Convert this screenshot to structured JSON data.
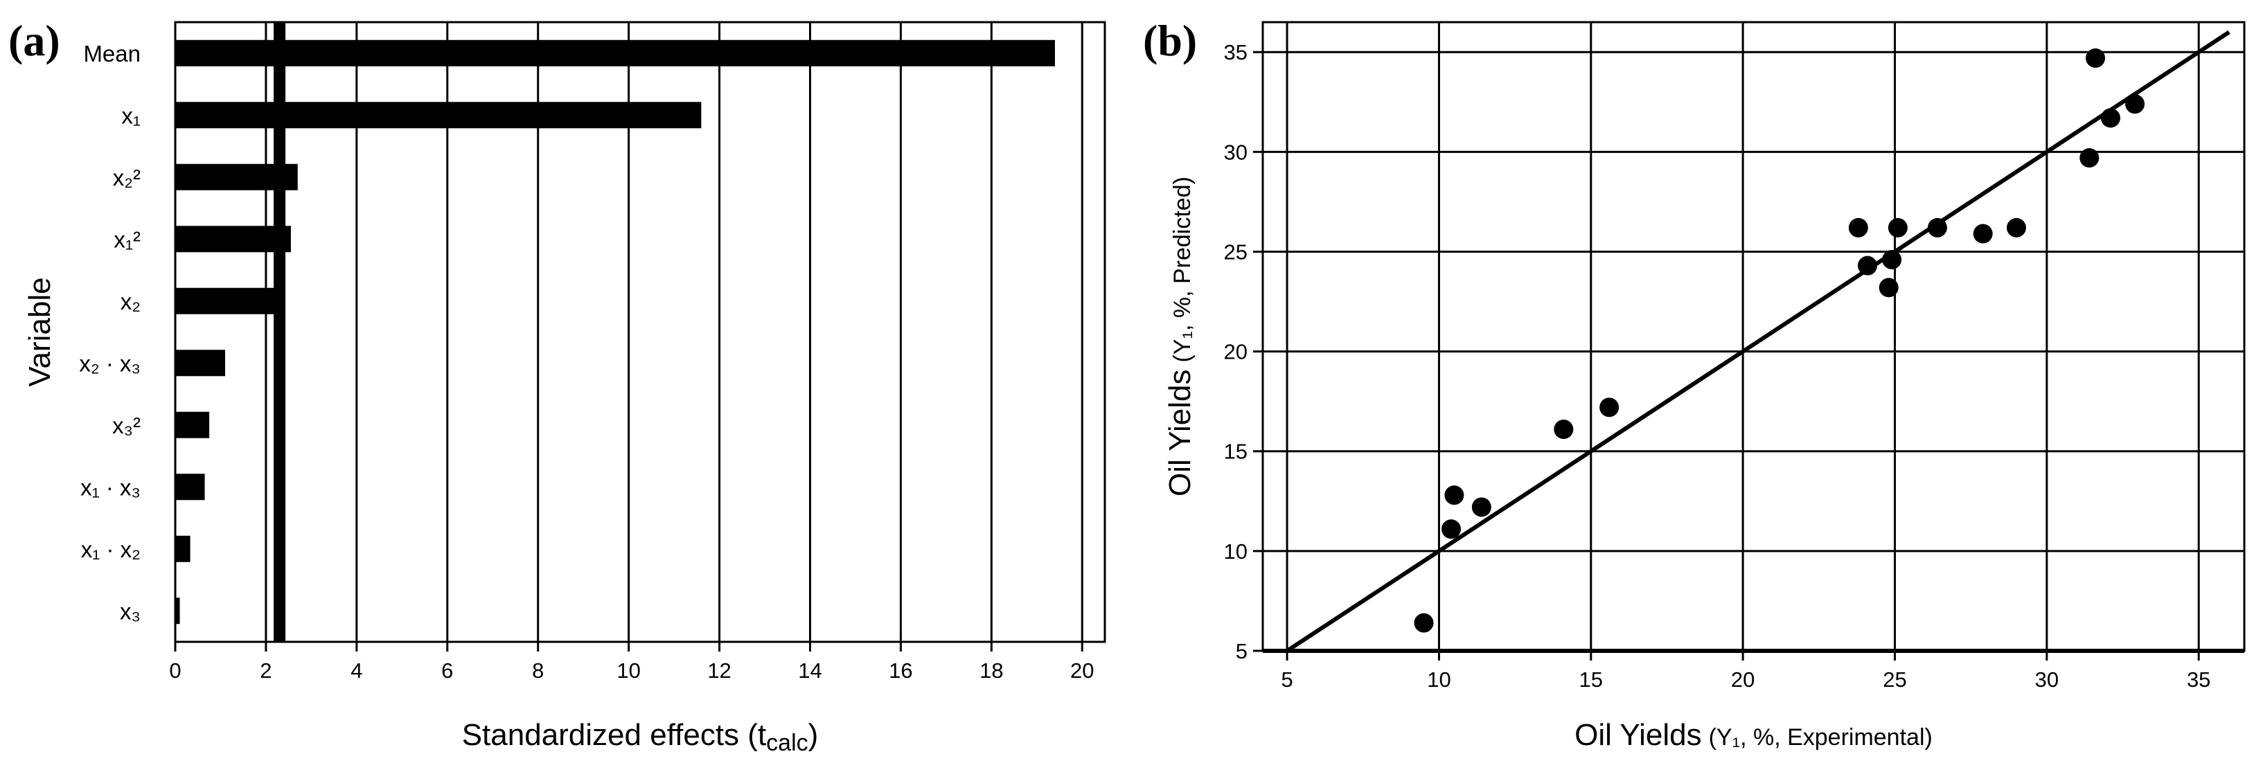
{
  "chart_data": [
    {
      "panel_label": "(a)",
      "type": "bar",
      "orientation": "horizontal",
      "categories": [
        "Mean",
        "x₁",
        "x₂²",
        "x₁²",
        "x₂",
        "x₂ · x₃",
        "x₃²",
        "x₁ · x₃",
        "x₁ · x₂",
        "x₃"
      ],
      "values": [
        19.4,
        11.6,
        2.7,
        2.55,
        2.35,
        1.1,
        0.75,
        0.65,
        0.33,
        0.1
      ],
      "xlabel": "Standardized effects (t",
      "xlabel_sub": "calc",
      "xlabel_end": ")",
      "ylabel": "Variable",
      "xlim": [
        0,
        20.5
      ],
      "xticks": [
        0,
        2,
        4,
        6,
        8,
        10,
        12,
        14,
        16,
        18,
        20
      ],
      "reference_line": 2.3,
      "grid": "vertical",
      "bar_color": "#000000"
    },
    {
      "panel_label": "(b)",
      "type": "scatter",
      "x": [
        9.5,
        10.4,
        10.5,
        11.4,
        14.1,
        15.6,
        23.8,
        24.1,
        24.8,
        24.9,
        25.1,
        26.4,
        27.9,
        29.0,
        31.4,
        31.6,
        32.1,
        32.9
      ],
      "y": [
        6.4,
        11.1,
        12.8,
        12.2,
        16.1,
        17.2,
        26.2,
        24.3,
        23.2,
        24.6,
        26.2,
        26.2,
        25.9,
        26.2,
        29.7,
        34.7,
        31.7,
        32.4
      ],
      "fit_line": [
        [
          5,
          5
        ],
        [
          36,
          36
        ]
      ],
      "xlabel": "Oil Yields",
      "xlabel_small": "(Y₁, %, Experimental)",
      "ylabel": "Oil Yields",
      "ylabel_small": "(Y₁, %, Predicted)",
      "xlim": [
        4.2,
        36.5
      ],
      "ylim": [
        5,
        36.5
      ],
      "xticks": [
        5,
        10,
        15,
        20,
        25,
        30,
        35
      ],
      "yticks": [
        5,
        10,
        15,
        20,
        25,
        30,
        35
      ],
      "grid": true,
      "marker_color": "#000000"
    }
  ]
}
